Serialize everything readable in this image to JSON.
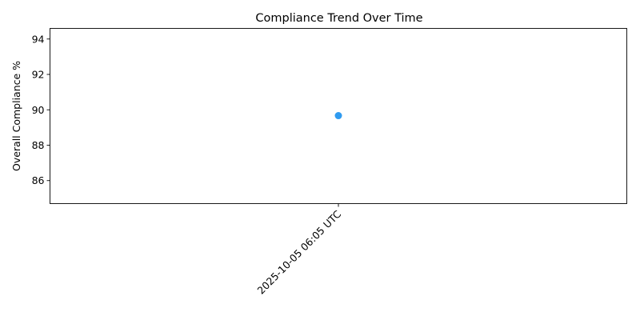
{
  "chart_data": {
    "type": "scatter",
    "title": "Compliance Trend Over Time",
    "xlabel": "",
    "ylabel": "Overall Compliance %",
    "x": [
      "2025-10-05 06:05 UTC"
    ],
    "series": [
      {
        "values": [
          89.67
        ],
        "color": "#2f9bf0"
      }
    ],
    "ylim": [
      84.7,
      94.6
    ],
    "yticks": [
      86,
      88,
      90,
      92,
      94
    ],
    "grid": false,
    "legend": "none"
  }
}
